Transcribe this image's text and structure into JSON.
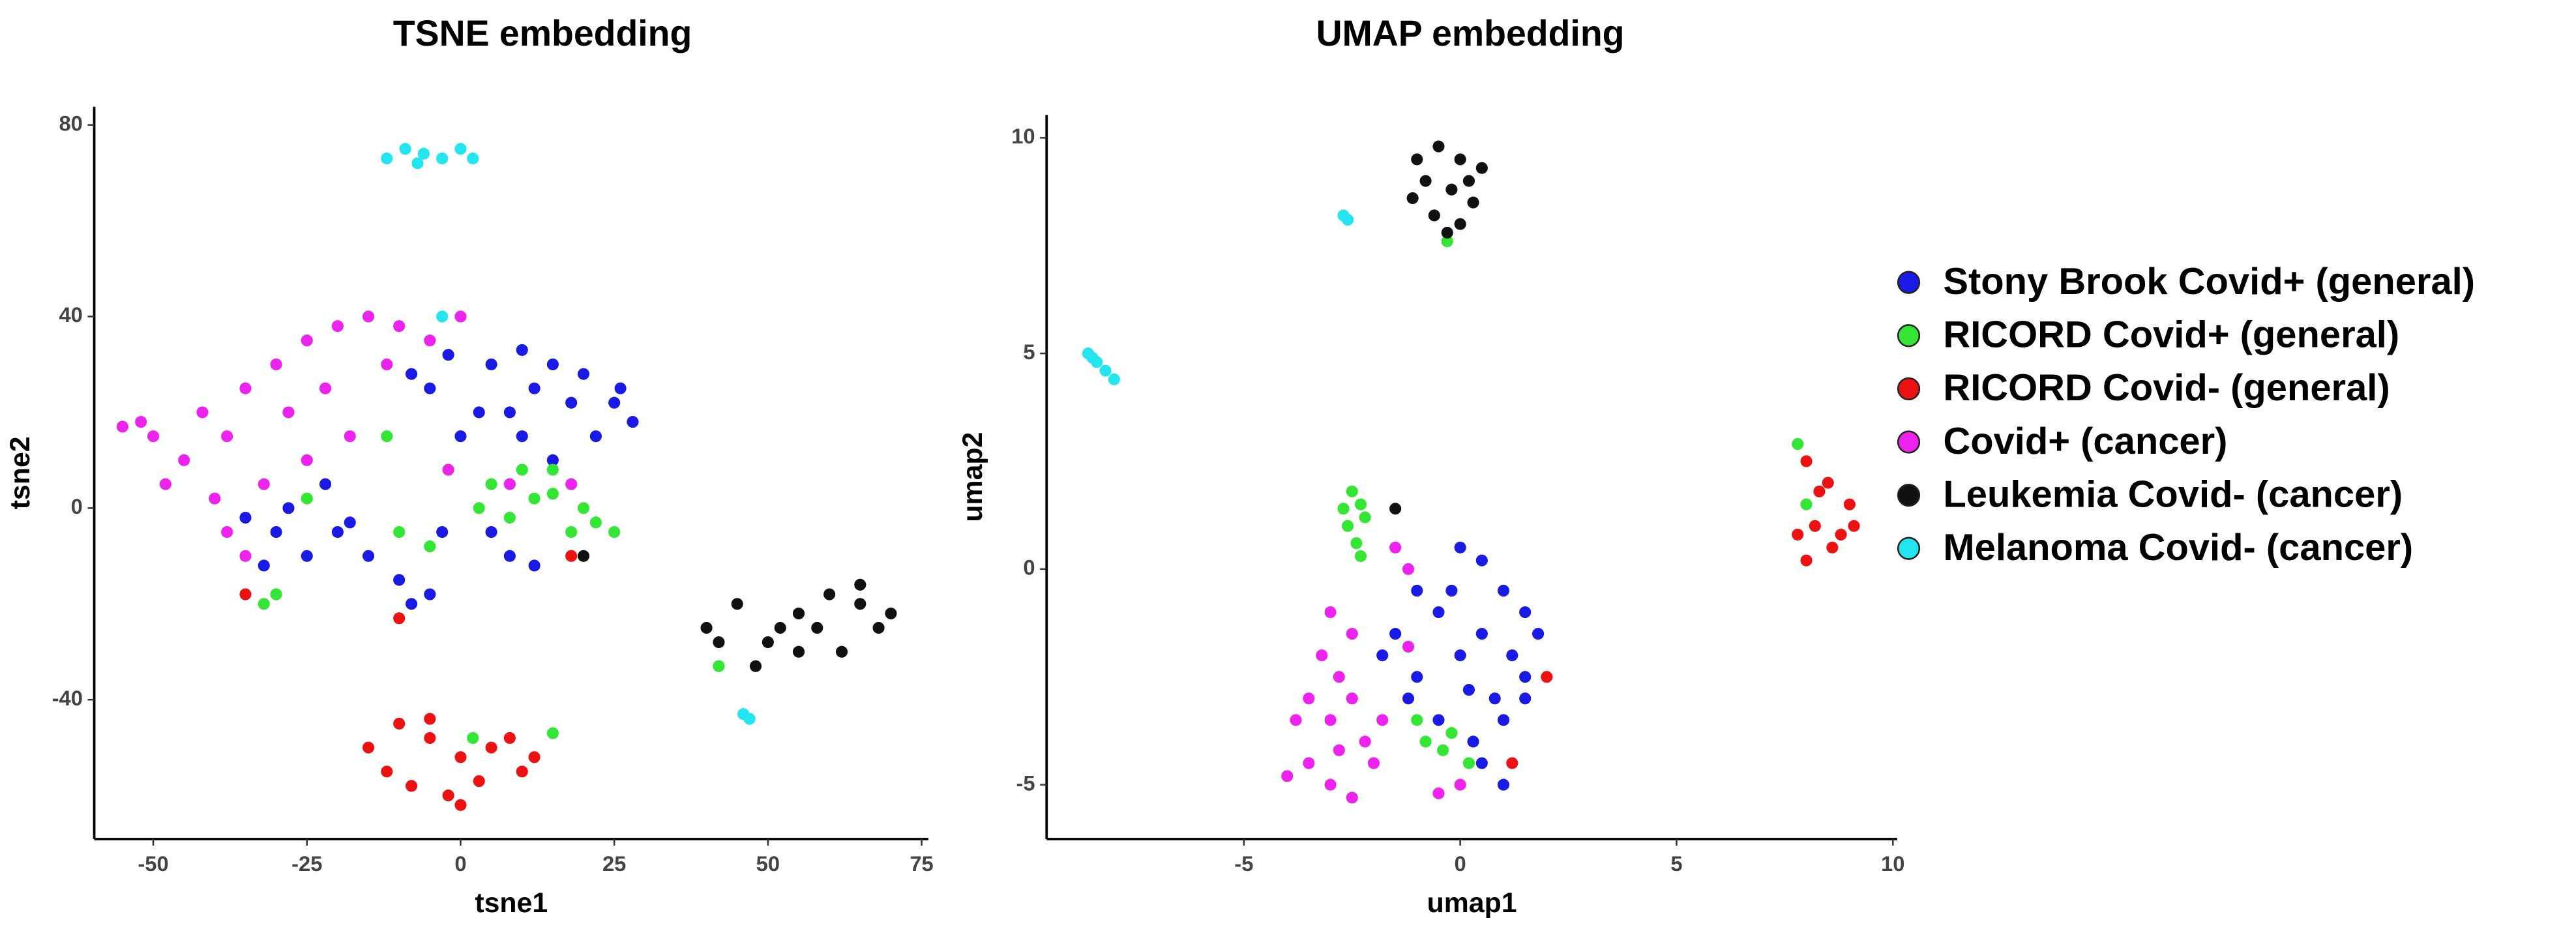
{
  "chart_data": [
    {
      "type": "scatter",
      "title": "TSNE embedding",
      "xlabel": "tsne1",
      "ylabel": "tsne2",
      "xlim": [
        -59.6,
        76.1
      ],
      "ylim": [
        -69.1,
        83.8
      ],
      "xticks": [
        -50,
        -25,
        0,
        25,
        50,
        75
      ],
      "yticks": [
        -40,
        0,
        40,
        80
      ],
      "grid": false,
      "series": [
        {
          "name": "Stony Brook Covid+ (general)",
          "color": "#1a1ae6",
          "x": [
            5,
            10,
            15,
            20,
            25,
            28,
            22,
            12,
            3,
            -5,
            0,
            8,
            18,
            26,
            -8,
            -2,
            10,
            15,
            -30,
            -25,
            -35,
            -20,
            -15,
            -10,
            -5,
            -8,
            -28,
            -22,
            -18,
            5,
            8,
            12,
            -3,
            -32
          ],
          "y": [
            30,
            33,
            30,
            28,
            22,
            18,
            15,
            25,
            20,
            25,
            15,
            20,
            22,
            25,
            28,
            32,
            15,
            10,
            -5,
            -10,
            -2,
            -5,
            -10,
            -15,
            -18,
            -20,
            0,
            5,
            -3,
            -5,
            -10,
            -12,
            -5,
            -12
          ]
        },
        {
          "name": "RICORD Covid+ (general)",
          "color": "#33e633",
          "x": [
            5,
            10,
            15,
            20,
            8,
            12,
            18,
            22,
            15,
            3,
            25,
            -32,
            -30,
            -25,
            -10,
            -5,
            2,
            15,
            -12,
            42
          ],
          "y": [
            5,
            8,
            3,
            0,
            -2,
            2,
            -5,
            -3,
            8,
            0,
            -5,
            -20,
            -18,
            2,
            -5,
            -8,
            -48,
            -47,
            15,
            -33
          ]
        },
        {
          "name": "RICORD Covid- (general)",
          "color": "#ee1111",
          "x": [
            -15,
            -10,
            -5,
            0,
            5,
            10,
            -8,
            -2,
            3,
            -12,
            8,
            12,
            -5,
            0,
            -10,
            -35,
            18
          ],
          "y": [
            -50,
            -45,
            -48,
            -52,
            -50,
            -55,
            -58,
            -60,
            -57,
            -55,
            -48,
            -52,
            -44,
            -62,
            -23,
            -18,
            -10
          ]
        },
        {
          "name": "Covid+ (cancer)",
          "color": "#ee22ee",
          "x": [
            -55,
            -50,
            -45,
            -48,
            -52,
            -42,
            -38,
            -35,
            -30,
            -25,
            -20,
            -15,
            -10,
            -5,
            -28,
            -22,
            -18,
            -12,
            -25,
            -32,
            -38,
            -35,
            -40,
            0,
            -2,
            8,
            18
          ],
          "y": [
            17,
            15,
            10,
            5,
            18,
            20,
            15,
            25,
            30,
            35,
            38,
            40,
            38,
            35,
            20,
            25,
            15,
            30,
            10,
            5,
            -5,
            -10,
            2,
            40,
            8,
            5,
            5
          ]
        },
        {
          "name": "Leukemia Covid- (cancer)",
          "color": "#111111",
          "x": [
            40,
            45,
            50,
            55,
            60,
            65,
            68,
            62,
            55,
            48,
            52,
            58,
            65,
            42,
            70,
            20
          ],
          "y": [
            -25,
            -20,
            -28,
            -22,
            -18,
            -20,
            -25,
            -30,
            -30,
            -33,
            -25,
            -25,
            -16,
            -28,
            -22,
            -10
          ]
        },
        {
          "name": "Melanoma Covid- (cancer)",
          "color": "#22e5f0",
          "x": [
            -12,
            -9,
            -6,
            -3,
            0,
            -7,
            2,
            46,
            47,
            -3
          ],
          "y": [
            73,
            75,
            74,
            73,
            75,
            72,
            73,
            -43,
            -44,
            40
          ]
        }
      ]
    },
    {
      "type": "scatter",
      "title": "UMAP embedding",
      "xlabel": "umap1",
      "ylabel": "umap2",
      "xlim": [
        -9.56,
        10.1
      ],
      "ylim": [
        -6.26,
        10.53
      ],
      "xticks": [
        -5,
        0,
        5,
        10
      ],
      "yticks": [
        -5,
        0,
        5,
        10
      ],
      "grid": false,
      "legend": "right",
      "series": [
        {
          "name": "Stony Brook Covid+ (general)",
          "color": "#1a1ae6",
          "x": [
            0,
            0.5,
            1,
            1.5,
            1.8,
            1.2,
            0.5,
            -0.5,
            -1,
            -1.5,
            0,
            0.8,
            1.5,
            1,
            0.3,
            -0.5,
            -1,
            -1.2,
            0.5,
            1,
            -0.2,
            1.5,
            0.2,
            -1.8
          ],
          "y": [
            0.5,
            0.2,
            -0.5,
            -1,
            -1.5,
            -2,
            -1.5,
            -1,
            -0.5,
            -1.5,
            -2,
            -3,
            -2.5,
            -3.5,
            -4,
            -3.5,
            -2.5,
            -3,
            -4.5,
            -5,
            -0.5,
            -3,
            -2.8,
            -2
          ]
        },
        {
          "name": "RICORD Covid+ (general)",
          "color": "#33e633",
          "x": [
            -2.5,
            -2.3,
            -2.6,
            -2.4,
            -2.2,
            -2.7,
            -2.3,
            -0.8,
            -0.4,
            -0.2,
            -1,
            0.2,
            -0.3,
            7.8,
            8
          ],
          "y": [
            1.8,
            1.5,
            1,
            0.6,
            1.2,
            1.4,
            0.3,
            -4,
            -4.2,
            -3.8,
            -3.5,
            -4.5,
            7.6,
            2.9,
            1.5
          ]
        },
        {
          "name": "RICORD Covid- (general)",
          "color": "#ee1111",
          "x": [
            8,
            8.5,
            9,
            8.2,
            8.8,
            8.3,
            7.8,
            8.6,
            9.1,
            8,
            2,
            1.2
          ],
          "y": [
            2.5,
            2,
            1.5,
            1,
            0.8,
            1.8,
            0.8,
            0.5,
            1,
            0.2,
            -2.5,
            -4.5
          ]
        },
        {
          "name": "Covid+ (cancer)",
          "color": "#ee22ee",
          "x": [
            -3,
            -2.5,
            -3.2,
            -2.8,
            -3.5,
            -2.5,
            -3,
            -2.2,
            -3.5,
            -4,
            -3,
            -2.5,
            -2,
            -1.8,
            -2.8,
            -3.8,
            -1.5,
            -1.2,
            -0.5,
            0,
            -1.2
          ],
          "y": [
            -1,
            -1.5,
            -2,
            -2.5,
            -3,
            -3,
            -3.5,
            -4,
            -4.5,
            -4.8,
            -5,
            -5.3,
            -4.5,
            -3.5,
            -4.2,
            -3.5,
            0.5,
            0,
            -5.2,
            -5,
            -1.8
          ]
        },
        {
          "name": "Leukemia Covid- (cancer)",
          "color": "#111111",
          "x": [
            -1,
            -0.5,
            0,
            0.5,
            -0.8,
            -0.2,
            0.3,
            -0.6,
            0,
            -0.3,
            0.2,
            -1.1,
            -1.5
          ],
          "y": [
            9.5,
            9.8,
            9.5,
            9.3,
            9,
            8.8,
            8.5,
            8.2,
            8,
            7.8,
            9,
            8.6,
            1.4
          ]
        },
        {
          "name": "Melanoma Covid- (cancer)",
          "color": "#22e5f0",
          "x": [
            -2.7,
            -2.6,
            -8.6,
            -8.4,
            -8.2,
            -8,
            -8.5
          ],
          "y": [
            8.2,
            8.1,
            5,
            4.8,
            4.6,
            4.4,
            4.9
          ]
        }
      ]
    }
  ]
}
